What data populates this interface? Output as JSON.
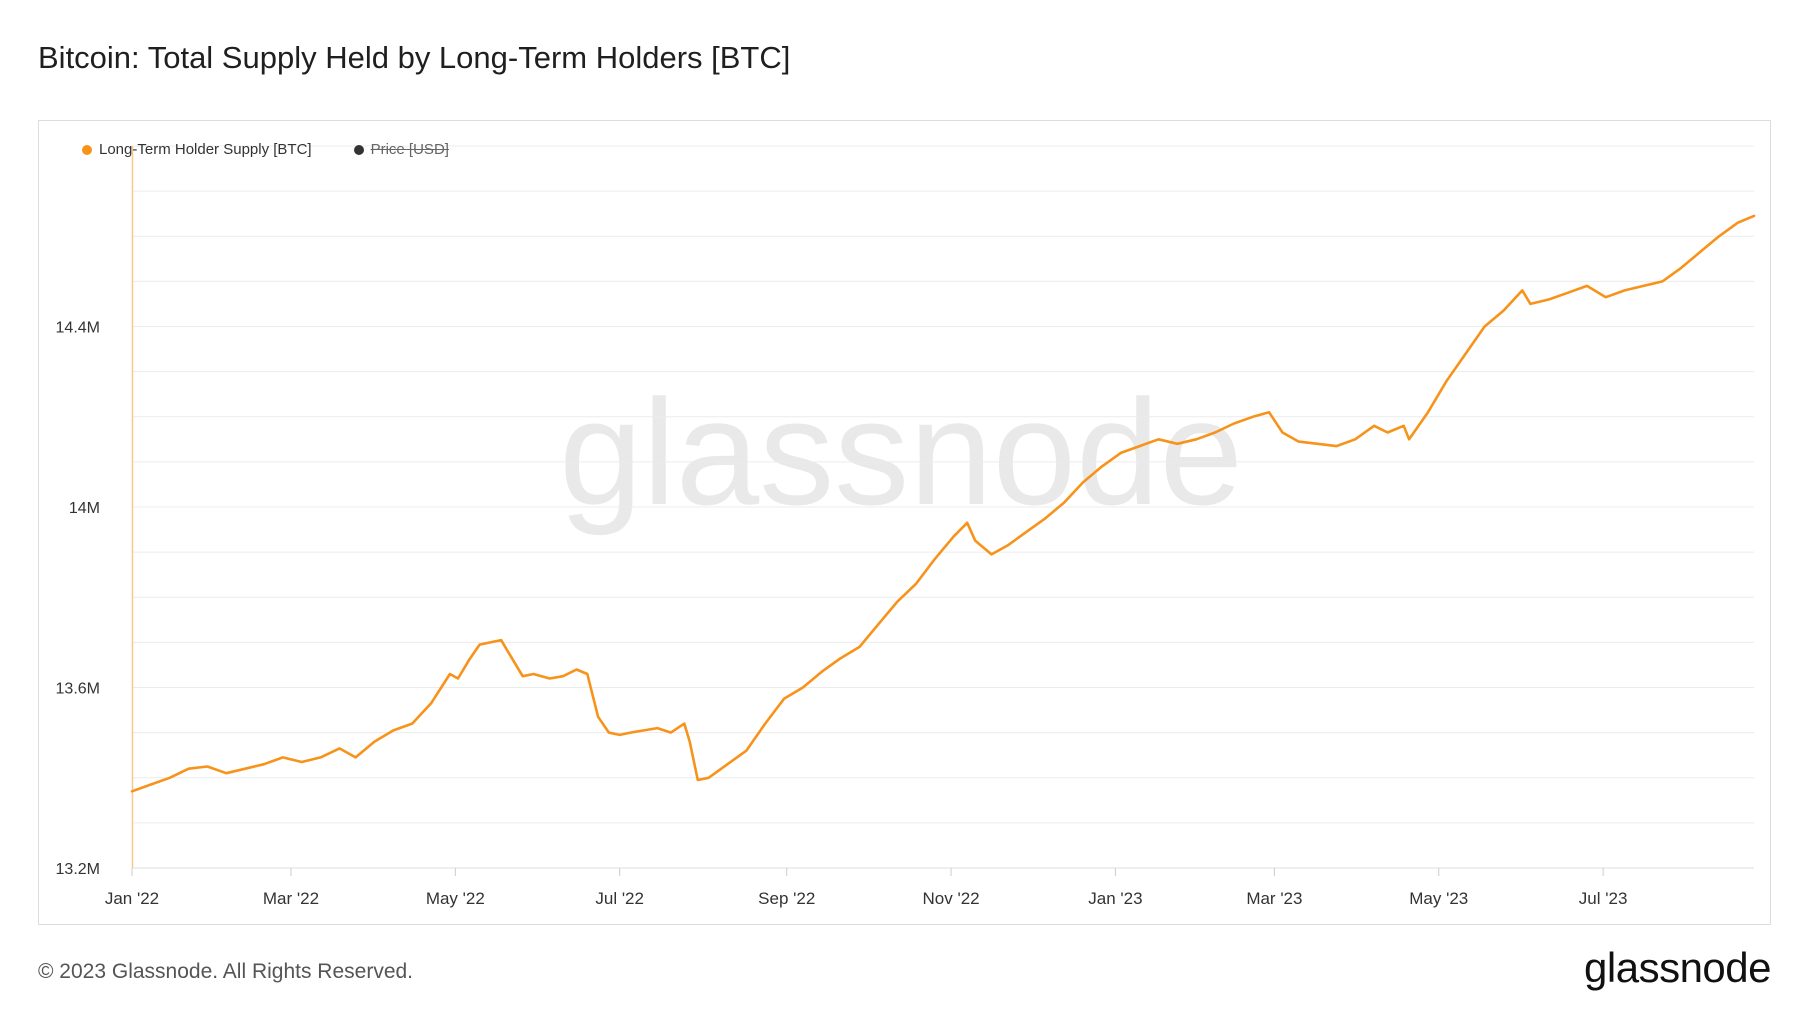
{
  "title": "Bitcoin: Total Supply Held by Long-Term Holders [BTC]",
  "watermark": "glassnode",
  "footer": {
    "copyright": "© 2023 Glassnode. All Rights Reserved.",
    "logo": "glassnode"
  },
  "colors": {
    "series": "#f7931a",
    "price": "#333333",
    "grid": "#ececec",
    "watermark": "#e9e9e9"
  },
  "chart_data": {
    "type": "line",
    "title": "Bitcoin: Total Supply Held by Long-Term Holders [BTC]",
    "xlabel": "",
    "ylabel": "",
    "grid": true,
    "legend_position": "top-left",
    "xlim": [
      "2022-01-01",
      "2023-08-26"
    ],
    "ylim": [
      13200000,
      14800000
    ],
    "x_ticks": [
      {
        "date": "2022-01-01",
        "label": "Jan '22"
      },
      {
        "date": "2022-03-01",
        "label": "Mar '22"
      },
      {
        "date": "2022-05-01",
        "label": "May '22"
      },
      {
        "date": "2022-07-01",
        "label": "Jul '22"
      },
      {
        "date": "2022-09-01",
        "label": "Sep '22"
      },
      {
        "date": "2022-11-01",
        "label": "Nov '22"
      },
      {
        "date": "2023-01-01",
        "label": "Jan '23"
      },
      {
        "date": "2023-03-01",
        "label": "Mar '23"
      },
      {
        "date": "2023-05-01",
        "label": "May '23"
      },
      {
        "date": "2023-07-01",
        "label": "Jul '23"
      }
    ],
    "y_ticks": [
      {
        "value": 13200000,
        "label": "13.2M"
      },
      {
        "value": 13600000,
        "label": "13.6M"
      },
      {
        "value": 14000000,
        "label": "14M"
      },
      {
        "value": 14400000,
        "label": "14.4M"
      }
    ],
    "legend": [
      {
        "label": "Long-Term Holder Supply [BTC]",
        "color": "#f7931a",
        "hidden": false
      },
      {
        "label": "Price [USD]",
        "color": "#333333",
        "hidden": true
      }
    ],
    "series": [
      {
        "name": "Long-Term Holder Supply [BTC]",
        "points": [
          [
            "2022-01-01",
            13370000
          ],
          [
            "2022-01-08",
            13385000
          ],
          [
            "2022-01-15",
            13400000
          ],
          [
            "2022-01-22",
            13420000
          ],
          [
            "2022-01-29",
            13425000
          ],
          [
            "2022-02-05",
            13410000
          ],
          [
            "2022-02-12",
            13420000
          ],
          [
            "2022-02-19",
            13430000
          ],
          [
            "2022-02-26",
            13445000
          ],
          [
            "2022-03-05",
            13435000
          ],
          [
            "2022-03-12",
            13445000
          ],
          [
            "2022-03-19",
            13465000
          ],
          [
            "2022-03-25",
            13445000
          ],
          [
            "2022-04-01",
            13480000
          ],
          [
            "2022-04-08",
            13505000
          ],
          [
            "2022-04-15",
            13520000
          ],
          [
            "2022-04-22",
            13565000
          ],
          [
            "2022-04-29",
            13630000
          ],
          [
            "2022-05-02",
            13620000
          ],
          [
            "2022-05-06",
            13660000
          ],
          [
            "2022-05-10",
            13695000
          ],
          [
            "2022-05-14",
            13700000
          ],
          [
            "2022-05-18",
            13705000
          ],
          [
            "2022-05-22",
            13665000
          ],
          [
            "2022-05-26",
            13625000
          ],
          [
            "2022-05-30",
            13630000
          ],
          [
            "2022-06-05",
            13620000
          ],
          [
            "2022-06-10",
            13625000
          ],
          [
            "2022-06-15",
            13640000
          ],
          [
            "2022-06-19",
            13630000
          ],
          [
            "2022-06-23",
            13535000
          ],
          [
            "2022-06-27",
            13500000
          ],
          [
            "2022-07-01",
            13495000
          ],
          [
            "2022-07-05",
            13500000
          ],
          [
            "2022-07-10",
            13505000
          ],
          [
            "2022-07-15",
            13510000
          ],
          [
            "2022-07-20",
            13500000
          ],
          [
            "2022-07-25",
            13520000
          ],
          [
            "2022-07-27",
            13480000
          ],
          [
            "2022-07-30",
            13395000
          ],
          [
            "2022-08-03",
            13400000
          ],
          [
            "2022-08-10",
            13430000
          ],
          [
            "2022-08-17",
            13460000
          ],
          [
            "2022-08-24",
            13520000
          ],
          [
            "2022-08-31",
            13575000
          ],
          [
            "2022-09-07",
            13600000
          ],
          [
            "2022-09-14",
            13635000
          ],
          [
            "2022-09-21",
            13665000
          ],
          [
            "2022-09-28",
            13690000
          ],
          [
            "2022-10-05",
            13740000
          ],
          [
            "2022-10-12",
            13790000
          ],
          [
            "2022-10-19",
            13830000
          ],
          [
            "2022-10-26",
            13885000
          ],
          [
            "2022-11-02",
            13935000
          ],
          [
            "2022-11-07",
            13965000
          ],
          [
            "2022-11-10",
            13925000
          ],
          [
            "2022-11-16",
            13895000
          ],
          [
            "2022-11-22",
            13915000
          ],
          [
            "2022-11-29",
            13945000
          ],
          [
            "2022-12-06",
            13975000
          ],
          [
            "2022-12-13",
            14010000
          ],
          [
            "2022-12-20",
            14055000
          ],
          [
            "2022-12-27",
            14090000
          ],
          [
            "2023-01-03",
            14120000
          ],
          [
            "2023-01-10",
            14135000
          ],
          [
            "2023-01-17",
            14150000
          ],
          [
            "2023-01-24",
            14140000
          ],
          [
            "2023-01-31",
            14150000
          ],
          [
            "2023-02-07",
            14165000
          ],
          [
            "2023-02-14",
            14185000
          ],
          [
            "2023-02-21",
            14200000
          ],
          [
            "2023-02-27",
            14210000
          ],
          [
            "2023-03-04",
            14165000
          ],
          [
            "2023-03-10",
            14145000
          ],
          [
            "2023-03-17",
            14140000
          ],
          [
            "2023-03-24",
            14135000
          ],
          [
            "2023-03-31",
            14150000
          ],
          [
            "2023-04-07",
            14180000
          ],
          [
            "2023-04-12",
            14165000
          ],
          [
            "2023-04-18",
            14180000
          ],
          [
            "2023-04-20",
            14150000
          ],
          [
            "2023-04-27",
            14210000
          ],
          [
            "2023-05-04",
            14280000
          ],
          [
            "2023-05-11",
            14340000
          ],
          [
            "2023-05-18",
            14400000
          ],
          [
            "2023-05-25",
            14435000
          ],
          [
            "2023-06-01",
            14480000
          ],
          [
            "2023-06-04",
            14450000
          ],
          [
            "2023-06-11",
            14460000
          ],
          [
            "2023-06-18",
            14475000
          ],
          [
            "2023-06-25",
            14490000
          ],
          [
            "2023-07-02",
            14465000
          ],
          [
            "2023-07-09",
            14480000
          ],
          [
            "2023-07-16",
            14490000
          ],
          [
            "2023-07-23",
            14500000
          ],
          [
            "2023-07-30",
            14530000
          ],
          [
            "2023-08-06",
            14565000
          ],
          [
            "2023-08-13",
            14600000
          ],
          [
            "2023-08-20",
            14630000
          ],
          [
            "2023-08-26",
            14645000
          ]
        ]
      }
    ]
  }
}
